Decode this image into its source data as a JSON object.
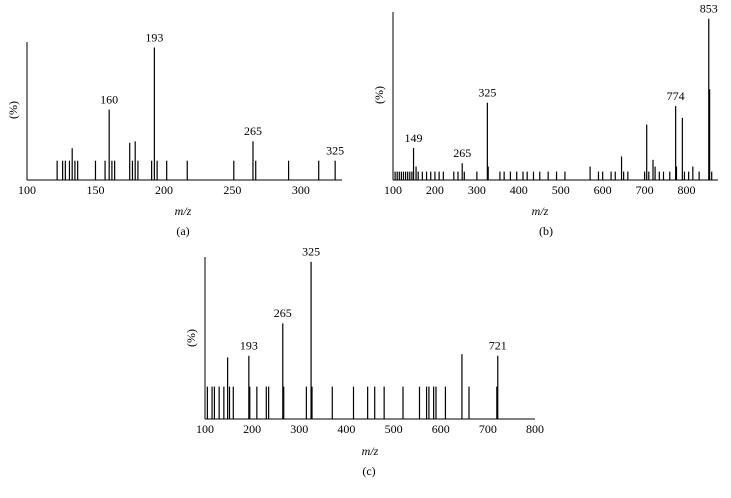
{
  "chart_data": [
    {
      "type": "bar",
      "xlabel": "m/z",
      "ylabel": "(%)",
      "caption": "(a)",
      "color": "#000000",
      "xlim": [
        100,
        330
      ],
      "xticks": [
        100,
        150,
        200,
        250,
        300
      ],
      "ylim": [
        0,
        100
      ],
      "x": [
        122,
        126,
        128,
        131,
        133,
        135,
        137,
        150,
        157,
        160,
        162,
        164,
        175,
        177,
        179,
        181,
        191,
        193,
        195,
        202,
        217,
        251,
        265,
        267,
        291,
        313,
        325
      ],
      "values": [
        14,
        14,
        14,
        14,
        23,
        14,
        14,
        14,
        14,
        51,
        14,
        14,
        27,
        14,
        28,
        14,
        14,
        96,
        14,
        14,
        14,
        14,
        28,
        14,
        14,
        14,
        14
      ],
      "label_peaks": [
        false,
        false,
        false,
        false,
        false,
        false,
        false,
        false,
        false,
        true,
        false,
        false,
        false,
        false,
        false,
        false,
        false,
        true,
        false,
        false,
        false,
        false,
        true,
        false,
        false,
        false,
        true
      ]
    },
    {
      "type": "bar",
      "xlabel": "m/z",
      "ylabel": "(%)",
      "caption": "(b)",
      "color": "#000000",
      "xlim": [
        100,
        875
      ],
      "xticks": [
        100,
        200,
        300,
        400,
        500,
        600,
        700,
        800
      ],
      "ylim": [
        0,
        100
      ],
      "x": [
        105,
        110,
        115,
        120,
        125,
        130,
        135,
        140,
        145,
        149,
        155,
        160,
        170,
        180,
        190,
        200,
        210,
        220,
        245,
        255,
        265,
        270,
        300,
        325,
        327,
        355,
        365,
        380,
        395,
        410,
        420,
        435,
        450,
        470,
        490,
        510,
        570,
        590,
        600,
        620,
        630,
        645,
        650,
        660,
        700,
        705,
        710,
        720,
        725,
        735,
        745,
        760,
        774,
        776,
        790,
        795,
        805,
        815,
        830,
        853,
        855,
        860
      ],
      "values": [
        5,
        5,
        5,
        5,
        5,
        5,
        5,
        5,
        5,
        19,
        8,
        5,
        5,
        5,
        5,
        5,
        5,
        5,
        5,
        5,
        10,
        5,
        5,
        46,
        8,
        5,
        5,
        5,
        5,
        5,
        5,
        5,
        5,
        5,
        5,
        5,
        8,
        5,
        5,
        5,
        5,
        14,
        5,
        5,
        5,
        33,
        5,
        12,
        8,
        5,
        5,
        5,
        44,
        8,
        37,
        5,
        5,
        8,
        5,
        96,
        54,
        5
      ],
      "label_peaks": [
        false,
        false,
        false,
        false,
        false,
        false,
        false,
        false,
        false,
        true,
        false,
        false,
        false,
        false,
        false,
        false,
        false,
        false,
        false,
        false,
        true,
        false,
        false,
        true,
        false,
        false,
        false,
        false,
        false,
        false,
        false,
        false,
        false,
        false,
        false,
        false,
        false,
        false,
        false,
        false,
        false,
        false,
        false,
        false,
        false,
        false,
        false,
        false,
        false,
        false,
        false,
        false,
        true,
        false,
        false,
        false,
        false,
        false,
        false,
        true,
        false,
        false
      ]
    },
    {
      "type": "bar",
      "xlabel": "m/z",
      "ylabel": "(%)",
      "caption": "(c)",
      "color": "#000000",
      "xlim": [
        100,
        800
      ],
      "xticks": [
        100,
        200,
        300,
        400,
        500,
        600,
        700,
        800
      ],
      "ylim": [
        0,
        100
      ],
      "x": [
        105,
        115,
        120,
        130,
        140,
        148,
        152,
        160,
        193,
        195,
        210,
        230,
        235,
        265,
        267,
        315,
        325,
        327,
        370,
        415,
        445,
        460,
        480,
        520,
        555,
        570,
        575,
        585,
        590,
        610,
        645,
        660,
        719,
        721
      ],
      "values": [
        20,
        20,
        20,
        20,
        20,
        38,
        20,
        20,
        39,
        20,
        20,
        20,
        20,
        59,
        20,
        20,
        97,
        20,
        20,
        20,
        20,
        20,
        20,
        20,
        20,
        20,
        20,
        20,
        20,
        20,
        40,
        20,
        20,
        39
      ],
      "label_peaks": [
        false,
        false,
        false,
        false,
        false,
        false,
        false,
        false,
        true,
        false,
        false,
        false,
        false,
        true,
        false,
        false,
        true,
        false,
        false,
        false,
        false,
        false,
        false,
        false,
        false,
        false,
        false,
        false,
        false,
        false,
        false,
        false,
        false,
        true
      ]
    }
  ]
}
